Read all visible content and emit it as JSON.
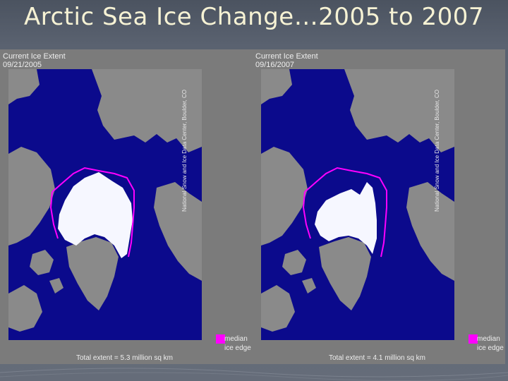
{
  "slide": {
    "title": "Arctic Sea Ice Change…2005 to 2007"
  },
  "panels": [
    {
      "heading": "Current Ice Extent",
      "date": "09/21/2005",
      "credit": "National Snow and Ice Data Center, Boulder, CO",
      "legend_line1": "median",
      "legend_line2": "ice edge",
      "extent_label": "Total extent =",
      "extent_value": "5.3 million sq km"
    },
    {
      "heading": "Current Ice Extent",
      "date": "09/16/2007",
      "credit": "National Snow and Ice Data Center, Boulder, CO",
      "legend_line1": "median",
      "legend_line2": "ice edge",
      "extent_label": "Total extent =",
      "extent_value": "4.1 million sq km"
    }
  ],
  "colors": {
    "ocean": "#0b0a8c",
    "land": "#8a8a8a",
    "ice": "#f6f7ff",
    "median_edge": "#ff00ff",
    "title": "#f6f2d4"
  }
}
